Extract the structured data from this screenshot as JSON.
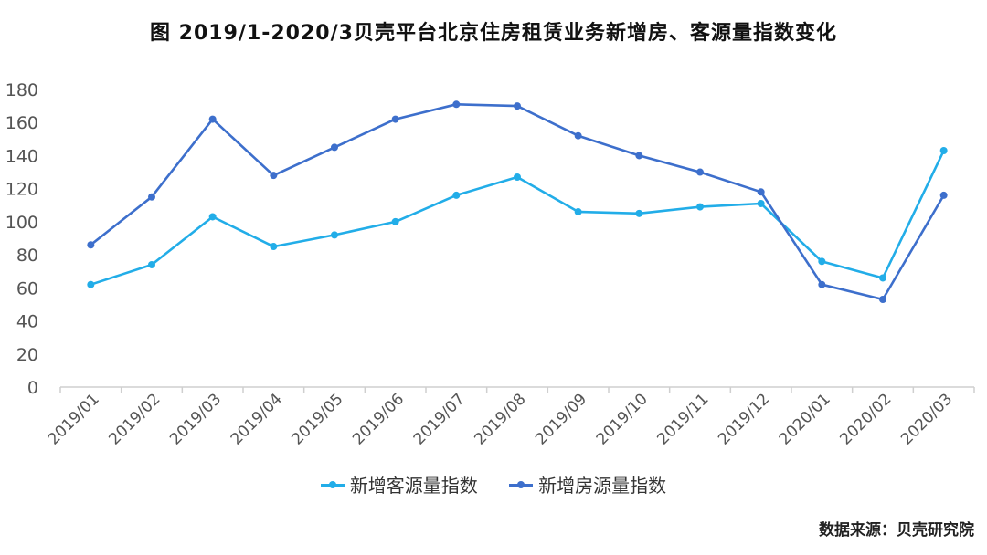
{
  "chart_data": {
    "type": "line",
    "title": "图 2019/1-2020/3贝壳平台北京住房租赁业务新增房、客源量指数变化",
    "xlabel": "",
    "ylabel": "",
    "categories": [
      "2019/01",
      "2019/02",
      "2019/03",
      "2019/04",
      "2019/05",
      "2019/06",
      "2019/07",
      "2019/08",
      "2019/09",
      "2019/10",
      "2019/11",
      "2019/12",
      "2020/01",
      "2020/02",
      "2020/03"
    ],
    "ylim": [
      0,
      180
    ],
    "yticks": [
      0,
      20,
      40,
      60,
      80,
      100,
      120,
      140,
      160,
      180
    ],
    "grid": false,
    "legend": "bottom",
    "series": [
      {
        "name": "新增客源量指数",
        "color": "#22ade8",
        "values": [
          62,
          74,
          103,
          85,
          92,
          100,
          116,
          127,
          106,
          105,
          109,
          111,
          76,
          66,
          143
        ]
      },
      {
        "name": "新增房源量指数",
        "color": "#3d6fcc",
        "values": [
          86,
          115,
          162,
          128,
          145,
          162,
          171,
          170,
          152,
          140,
          130,
          118,
          62,
          53,
          116
        ]
      }
    ]
  },
  "source_note": "数据来源：贝壳研究院"
}
